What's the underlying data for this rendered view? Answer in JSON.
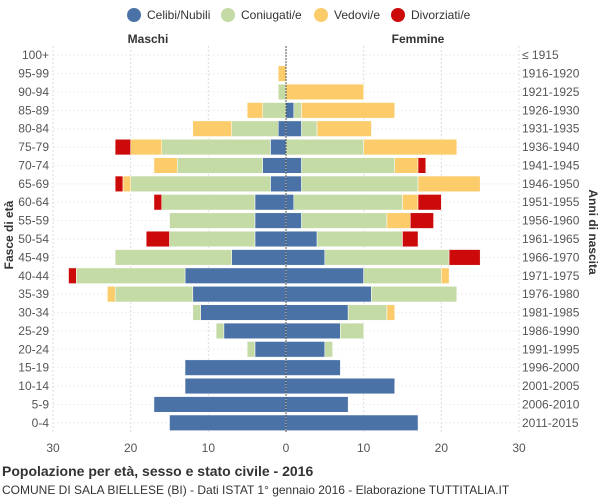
{
  "chart_data": {
    "type": "bar",
    "orientation": "horizontal-pyramid",
    "title": "Popolazione per età, sesso e stato civile - 2016",
    "subtitle": "COMUNE DI SALA BIELLESE (BI) - Dati ISTAT 1° gennaio 2016 - Elaborazione TUTTITALIA.IT",
    "left_header": "Maschi",
    "right_header": "Femmine",
    "ylabel_left": "Fasce di età",
    "ylabel_right": "Anni di nascita",
    "xlim": [
      -30,
      30
    ],
    "x_ticks": [
      -30,
      -20,
      -10,
      0,
      10,
      20,
      30
    ],
    "x_tick_labels": [
      "30",
      "20",
      "10",
      "0",
      "10",
      "20",
      "30"
    ],
    "legend": [
      {
        "name": "Celibi/Nubili",
        "color": "#4a72a6"
      },
      {
        "name": "Coniugati/e",
        "color": "#c5dba6"
      },
      {
        "name": "Vedovi/e",
        "color": "#fccb6a"
      },
      {
        "name": "Divorziati/e",
        "color": "#cc0a0a"
      }
    ],
    "age_groups": [
      "100+",
      "95-99",
      "90-94",
      "85-89",
      "80-84",
      "75-79",
      "70-74",
      "65-69",
      "60-64",
      "55-59",
      "50-54",
      "45-49",
      "40-44",
      "35-39",
      "30-34",
      "25-29",
      "20-24",
      "15-19",
      "10-14",
      "5-9",
      "0-4"
    ],
    "birth_years": [
      "≤ 1915",
      "1916-1920",
      "1921-1925",
      "1926-1930",
      "1931-1935",
      "1936-1940",
      "1941-1945",
      "1946-1950",
      "1951-1955",
      "1956-1960",
      "1961-1965",
      "1966-1970",
      "1971-1975",
      "1976-1980",
      "1981-1985",
      "1986-1990",
      "1991-1995",
      "1996-2000",
      "2001-2005",
      "2006-2010",
      "2011-2015"
    ],
    "males": {
      "celibi": [
        0,
        0,
        0,
        0,
        1,
        2,
        3,
        2,
        4,
        4,
        4,
        7,
        13,
        12,
        11,
        8,
        4,
        13,
        13,
        17,
        15
      ],
      "coniugati": [
        0,
        0,
        1,
        3,
        6,
        14,
        11,
        18,
        12,
        11,
        11,
        15,
        14,
        10,
        1,
        1,
        1,
        0,
        0,
        0,
        0
      ],
      "vedovi": [
        0,
        1,
        0,
        2,
        5,
        4,
        3,
        1,
        0,
        0,
        0,
        0,
        0,
        1,
        0,
        0,
        0,
        0,
        0,
        0,
        0
      ],
      "divorziati": [
        0,
        0,
        0,
        0,
        0,
        2,
        0,
        1,
        1,
        0,
        3,
        0,
        1,
        0,
        0,
        0,
        0,
        0,
        0,
        0,
        0
      ]
    },
    "females": {
      "nubili": [
        0,
        0,
        0,
        1,
        2,
        0,
        2,
        2,
        1,
        2,
        4,
        5,
        10,
        11,
        8,
        7,
        5,
        7,
        14,
        8,
        17
      ],
      "coniugate": [
        0,
        0,
        0,
        1,
        2,
        10,
        12,
        15,
        14,
        11,
        11,
        16,
        10,
        11,
        5,
        3,
        1,
        0,
        0,
        0,
        0
      ],
      "vedove": [
        0,
        0,
        10,
        12,
        7,
        12,
        3,
        8,
        2,
        3,
        0,
        0,
        1,
        0,
        1,
        0,
        0,
        0,
        0,
        0,
        0
      ],
      "divorziate": [
        0,
        0,
        0,
        0,
        0,
        0,
        1,
        0,
        3,
        3,
        2,
        4,
        0,
        0,
        0,
        0,
        0,
        0,
        0,
        0,
        0
      ]
    }
  }
}
